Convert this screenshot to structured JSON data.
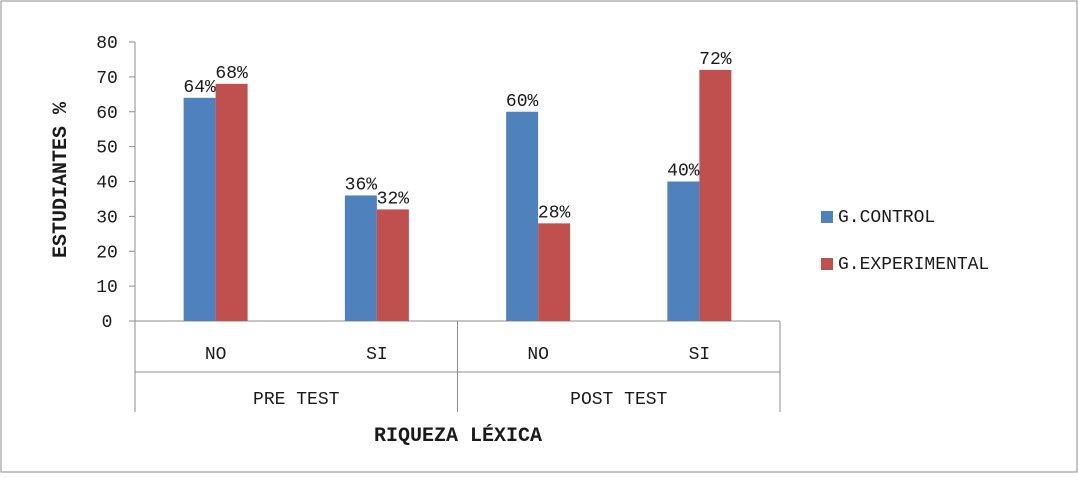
{
  "chart_data": {
    "type": "bar",
    "title": "",
    "xlabel": "RIQUEZA LÉXICA",
    "ylabel": "ESTUDIANTES %",
    "ylim": [
      0,
      80
    ],
    "yticks": [
      0,
      10,
      20,
      30,
      40,
      50,
      60,
      70,
      80
    ],
    "grid": false,
    "legend_position": "right",
    "groups": [
      {
        "label": "PRE TEST",
        "categories": [
          "NO",
          "SI"
        ]
      },
      {
        "label": "POST TEST",
        "categories": [
          "NO",
          "SI"
        ]
      }
    ],
    "categories": [
      "NO",
      "SI",
      "NO",
      "SI"
    ],
    "series": [
      {
        "name": "G.CONTROL",
        "color": "#4F81BD",
        "values": [
          64,
          36,
          60,
          40
        ],
        "labels": [
          "64%",
          "36%",
          "60%",
          "40%"
        ]
      },
      {
        "name": "G.EXPERIMENTAL",
        "color": "#C0504D",
        "values": [
          68,
          32,
          28,
          72
        ],
        "labels": [
          "68%",
          "32%",
          "28%",
          "72%"
        ]
      }
    ]
  }
}
